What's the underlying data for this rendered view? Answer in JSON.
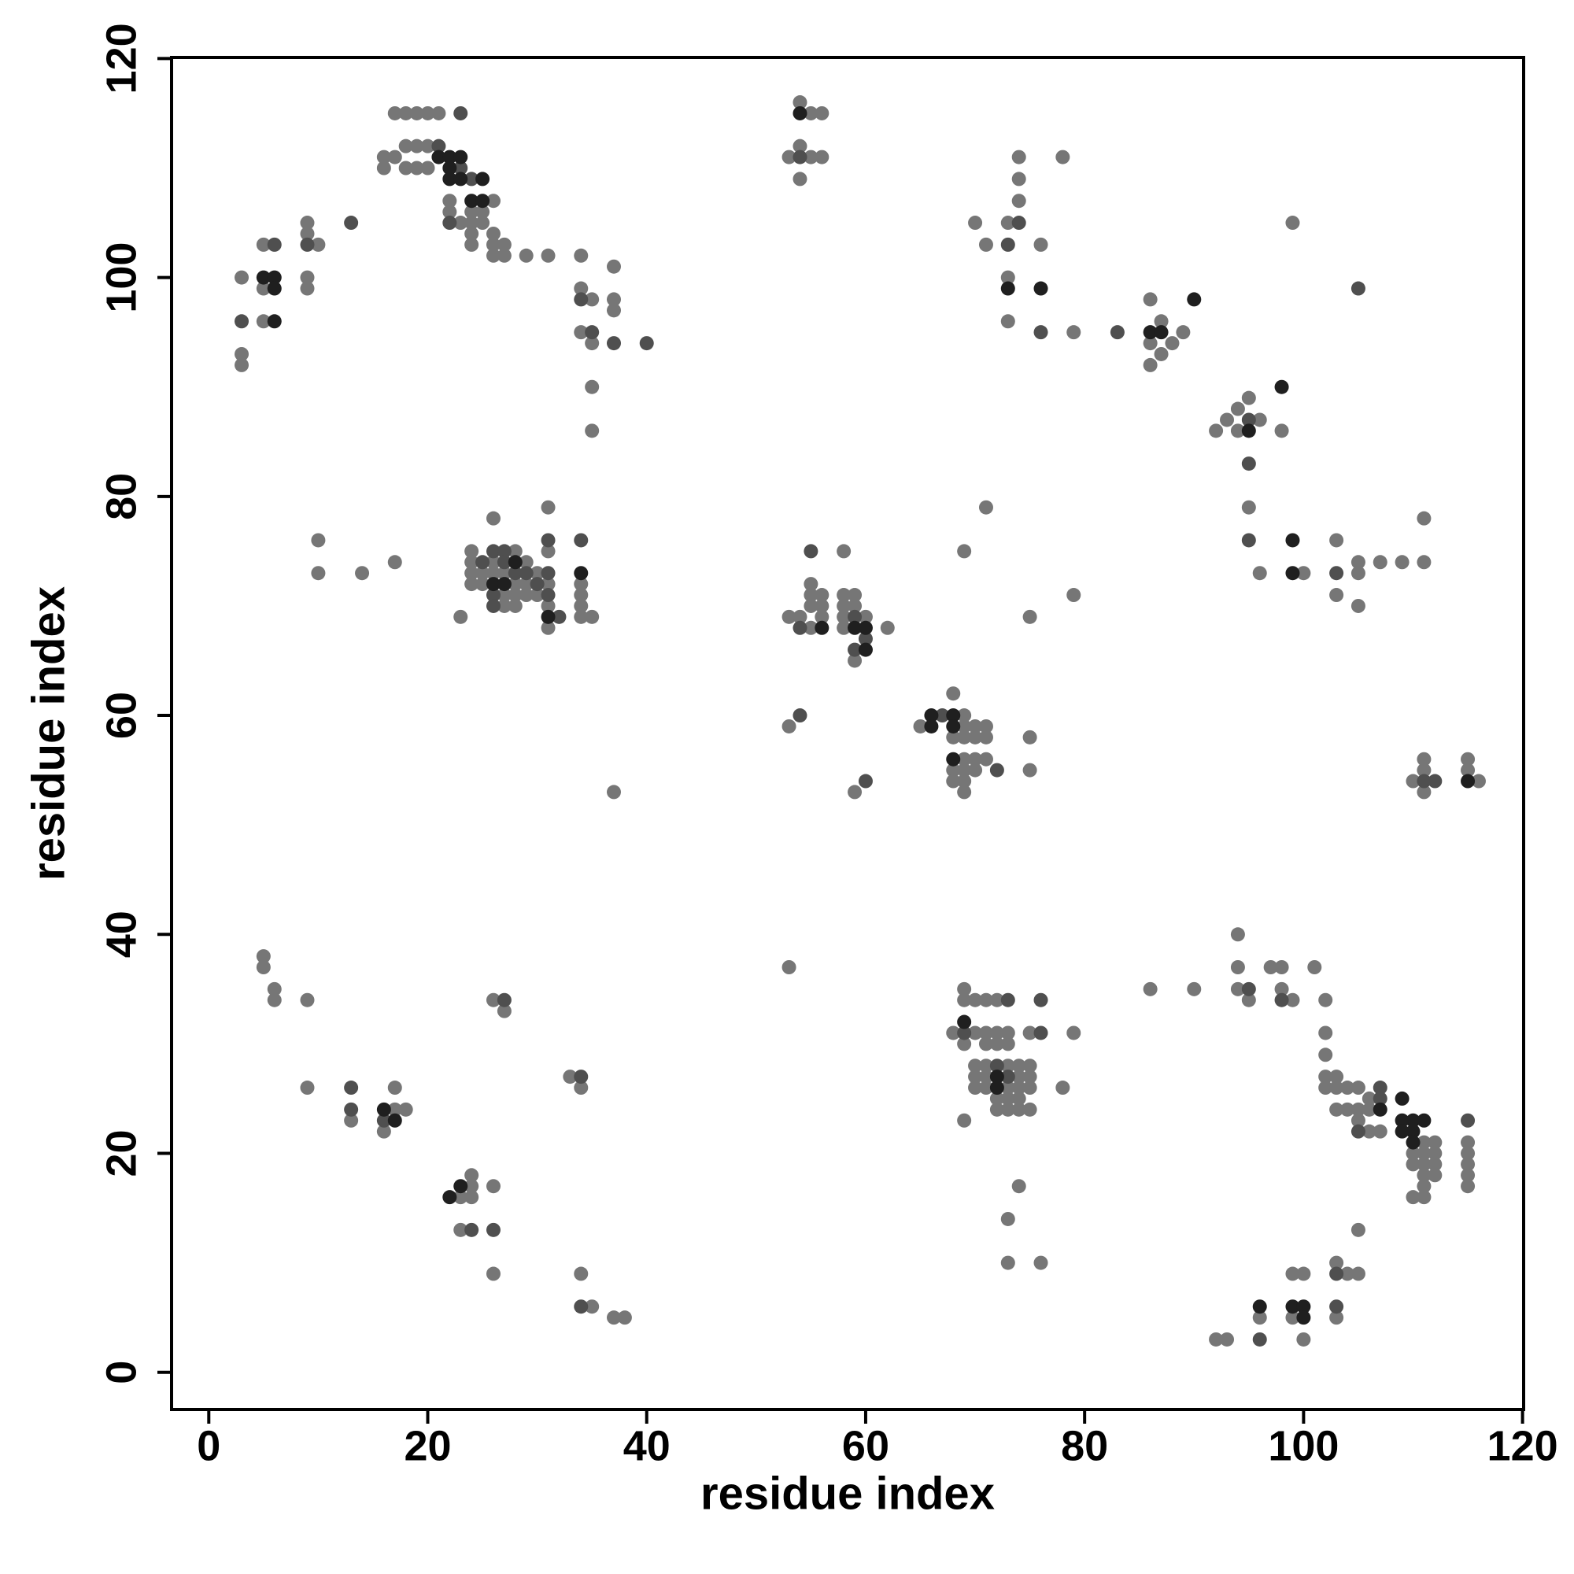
{
  "chart_data": {
    "type": "scatter",
    "xlabel": "residue index",
    "ylabel": "residue index",
    "xlim": [
      -3.4,
      120.1
    ],
    "ylim": [
      -3.4,
      120.1
    ],
    "xticks": [
      0,
      20,
      40,
      60,
      80,
      100,
      120
    ],
    "yticks": [
      0,
      20,
      40,
      60,
      80,
      100,
      120
    ],
    "series": [
      {
        "color": "#767676",
        "x": [
          3,
          3,
          3,
          5,
          5,
          5,
          9,
          9,
          10,
          9,
          9,
          17,
          18,
          19,
          20,
          21,
          16,
          17,
          18,
          19,
          20,
          16,
          18,
          19,
          20,
          22,
          26,
          22,
          24,
          25,
          23,
          24,
          25,
          24,
          26,
          24,
          26,
          27,
          26,
          27,
          29,
          31,
          34,
          37,
          34,
          35,
          37,
          37,
          34,
          35,
          35,
          35,
          54,
          55,
          56,
          53,
          54,
          55,
          56,
          54,
          74,
          78,
          74,
          74,
          70,
          73,
          71,
          76,
          73,
          73,
          79,
          86,
          86,
          87,
          88,
          87,
          89,
          86,
          92,
          93,
          94,
          95,
          94,
          96,
          98,
          95,
          96,
          100,
          99,
          103,
          103,
          105,
          105,
          105,
          107,
          109,
          111,
          111,
          110,
          111,
          111,
          111,
          115,
          115,
          116,
          10,
          10,
          14,
          17,
          23,
          24,
          24,
          24,
          24,
          25,
          25,
          26,
          26,
          26,
          27,
          27,
          27,
          28,
          28,
          28,
          28,
          29,
          29,
          29,
          30,
          30,
          31,
          31,
          31,
          31,
          31,
          34,
          34,
          34,
          34,
          35,
          37,
          53,
          54,
          55,
          55,
          55,
          55,
          56,
          56,
          56,
          58,
          58,
          58,
          58,
          58,
          59,
          59,
          60,
          59,
          62,
          53,
          59,
          69,
          71,
          75,
          79,
          65,
          68,
          69,
          69,
          68,
          69,
          70,
          71,
          70,
          71,
          69,
          70,
          71,
          68,
          69,
          70,
          68,
          69,
          69,
          75,
          75,
          5,
          5,
          6,
          6,
          9,
          9,
          13,
          17,
          16,
          17,
          18,
          23,
          24,
          24,
          24,
          23,
          26,
          26,
          26,
          27,
          33,
          34,
          34,
          35,
          37,
          38,
          53,
          69,
          69,
          70,
          71,
          72,
          68,
          70,
          71,
          72,
          73,
          75,
          79,
          69,
          71,
          72,
          73,
          70,
          71,
          73,
          74,
          75,
          70,
          71,
          74,
          75,
          70,
          71,
          73,
          74,
          75,
          72,
          73,
          74,
          72,
          73,
          74,
          75,
          78,
          69,
          74,
          73,
          73,
          76,
          86,
          90,
          94,
          94,
          94,
          95,
          97,
          98,
          98,
          99,
          101,
          102,
          102,
          102,
          102,
          103,
          102,
          103,
          104,
          105,
          106,
          106,
          103,
          104,
          105,
          105,
          106,
          107,
          111,
          112,
          110,
          111,
          112,
          110,
          111,
          112,
          111,
          112,
          110,
          111,
          111,
          115,
          115,
          115,
          115,
          115,
          105,
          103,
          104,
          105,
          92,
          93,
          96,
          99,
          100,
          99,
          100,
          103
        ],
        "values": [
          100,
          93,
          92,
          103,
          99,
          96,
          105,
          104,
          103,
          100,
          99,
          115,
          115,
          115,
          115,
          115,
          111,
          111,
          112,
          112,
          112,
          110,
          110,
          110,
          110,
          107,
          107,
          106,
          106,
          106,
          105,
          105,
          105,
          104,
          104,
          103,
          103,
          103,
          102,
          102,
          102,
          102,
          102,
          101,
          99,
          98,
          98,
          97,
          95,
          94,
          90,
          86,
          116,
          115,
          115,
          111,
          112,
          111,
          111,
          109,
          111,
          111,
          109,
          107,
          105,
          105,
          103,
          103,
          100,
          96,
          95,
          98,
          94,
          96,
          94,
          93,
          95,
          92,
          86,
          87,
          88,
          89,
          86,
          87,
          86,
          79,
          73,
          73,
          105,
          76,
          71,
          74,
          73,
          70,
          74,
          74,
          78,
          74,
          54,
          56,
          55,
          53,
          56,
          55,
          54,
          76,
          73,
          73,
          74,
          69,
          75,
          74,
          73,
          72,
          73,
          72,
          78,
          74,
          73,
          73,
          71,
          70,
          75,
          72,
          71,
          70,
          74,
          72,
          71,
          73,
          71,
          79,
          75,
          72,
          70,
          68,
          72,
          71,
          70,
          69,
          69,
          53,
          69,
          69,
          72,
          71,
          70,
          68,
          71,
          70,
          69,
          75,
          71,
          70,
          69,
          68,
          71,
          70,
          69,
          65,
          68,
          59,
          53,
          75,
          79,
          69,
          71,
          59,
          62,
          60,
          59,
          58,
          58,
          59,
          59,
          58,
          58,
          56,
          56,
          56,
          55,
          55,
          55,
          54,
          54,
          53,
          58,
          55,
          38,
          37,
          35,
          34,
          34,
          26,
          23,
          24,
          22,
          26,
          24,
          16,
          18,
          17,
          16,
          13,
          17,
          9,
          34,
          33,
          27,
          26,
          9,
          6,
          5,
          5,
          37,
          35,
          34,
          34,
          34,
          34,
          31,
          31,
          31,
          31,
          31,
          31,
          31,
          30,
          30,
          30,
          30,
          28,
          28,
          28,
          28,
          28,
          27,
          27,
          27,
          27,
          26,
          26,
          26,
          26,
          26,
          25,
          25,
          25,
          24,
          24,
          24,
          24,
          26,
          23,
          17,
          14,
          10,
          10,
          35,
          35,
          40,
          37,
          35,
          34,
          37,
          37,
          35,
          34,
          37,
          34,
          31,
          29,
          27,
          27,
          26,
          26,
          26,
          26,
          25,
          24,
          24,
          24,
          24,
          23,
          22,
          22,
          21,
          21,
          20,
          20,
          20,
          19,
          19,
          19,
          18,
          18,
          16,
          16,
          17,
          21,
          20,
          19,
          18,
          17,
          13,
          10,
          9,
          9,
          3,
          3,
          5,
          9,
          9,
          5,
          3,
          5
        ]
      },
      {
        "color": "#4f4f4f",
        "x": [
          3,
          6,
          9,
          13,
          21,
          23,
          23,
          24,
          22,
          34,
          35,
          37,
          40,
          54,
          74,
          73,
          76,
          83,
          95,
          95,
          95,
          105,
          103,
          111,
          112,
          25,
          26,
          26,
          26,
          27,
          27,
          28,
          29,
          30,
          31,
          31,
          31,
          32,
          34,
          55,
          54,
          59,
          60,
          59,
          54,
          60,
          67,
          72,
          13,
          13,
          16,
          24,
          26,
          27,
          34,
          34,
          73,
          76,
          69,
          76,
          72,
          73,
          95,
          98,
          107,
          107,
          105,
          115,
          103,
          96,
          103
        ],
        "values": [
          96,
          103,
          103,
          105,
          112,
          115,
          110,
          109,
          105,
          98,
          95,
          94,
          94,
          111,
          105,
          103,
          95,
          95,
          87,
          83,
          76,
          99,
          73,
          54,
          54,
          74,
          75,
          71,
          70,
          75,
          74,
          73,
          73,
          72,
          76,
          73,
          71,
          69,
          76,
          75,
          68,
          69,
          67,
          66,
          60,
          54,
          60,
          55,
          26,
          24,
          23,
          13,
          13,
          34,
          27,
          6,
          34,
          34,
          31,
          31,
          28,
          27,
          35,
          34,
          26,
          25,
          22,
          23,
          9,
          3,
          6
        ]
      },
      {
        "color": "#1f1f1f",
        "x": [
          5,
          6,
          6,
          6,
          21,
          22,
          23,
          22,
          22,
          23,
          25,
          24,
          25,
          54,
          73,
          76,
          86,
          87,
          90,
          95,
          98,
          99,
          99,
          26,
          27,
          28,
          31,
          34,
          56,
          59,
          60,
          60,
          66,
          66,
          68,
          68,
          68,
          115,
          16,
          17,
          22,
          23,
          69,
          72,
          72,
          107,
          109,
          109,
          110,
          111,
          109,
          110,
          110,
          96,
          99,
          100,
          100
        ],
        "values": [
          100,
          100,
          99,
          96,
          111,
          111,
          111,
          110,
          109,
          109,
          109,
          107,
          107,
          115,
          99,
          99,
          95,
          95,
          98,
          86,
          90,
          76,
          73,
          72,
          72,
          74,
          69,
          73,
          68,
          68,
          68,
          66,
          60,
          59,
          60,
          59,
          56,
          54,
          24,
          23,
          16,
          17,
          32,
          27,
          26,
          24,
          25,
          23,
          23,
          23,
          22,
          22,
          21,
          6,
          6,
          6,
          5
        ]
      }
    ]
  }
}
